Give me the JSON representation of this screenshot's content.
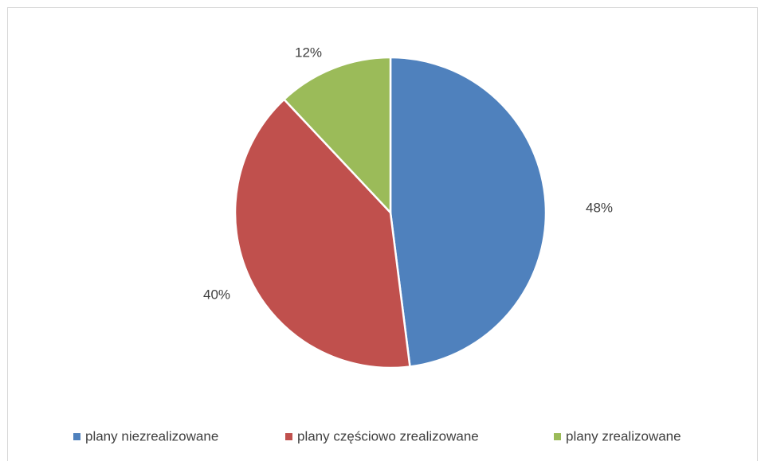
{
  "chart_data": {
    "type": "pie",
    "title": "",
    "slices": [
      {
        "label": "plany niezrealizowane",
        "value": 48,
        "display": "48%",
        "color": "#4f81bd"
      },
      {
        "label": "plany częściowo zrealizowane",
        "value": 40,
        "display": "40%",
        "color": "#c0504d"
      },
      {
        "label": "plany zrealizowane",
        "value": 12,
        "display": "12%",
        "color": "#9bbb59"
      }
    ],
    "legend_position": "bottom",
    "start_angle": "12 o'clock",
    "direction": "clockwise"
  }
}
